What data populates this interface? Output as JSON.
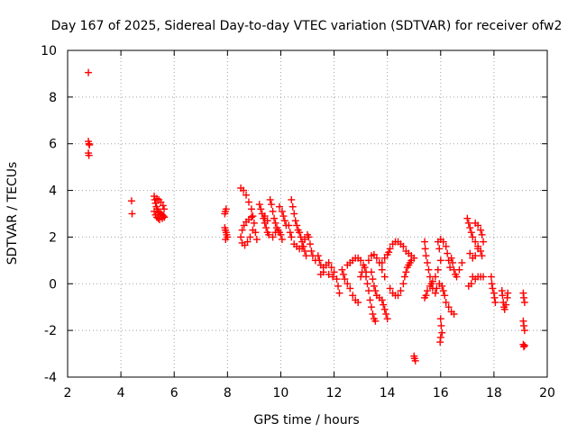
{
  "chart_data": {
    "type": "scatter",
    "title": "Day 167 of 2025, Sidereal Day-to-day VTEC variation (SDTVAR) for receiver ofw2",
    "xlabel": "GPS time / hours",
    "ylabel": "SDTVAR / TECUs",
    "xlim": [
      2,
      20
    ],
    "ylim": [
      -4,
      10
    ],
    "xticks": [
      2,
      4,
      6,
      8,
      10,
      12,
      14,
      16,
      18,
      20
    ],
    "yticks": [
      -4,
      -2,
      0,
      2,
      4,
      6,
      8,
      10
    ],
    "grid": true,
    "marker": "+",
    "series": [
      {
        "name": "SDTVAR",
        "color": "#ff0000",
        "points": [
          [
            2.78,
            9.05
          ],
          [
            2.78,
            6.1
          ],
          [
            2.8,
            6.0
          ],
          [
            2.82,
            5.95
          ],
          [
            2.78,
            5.6
          ],
          [
            2.8,
            5.5
          ],
          [
            4.4,
            3.55
          ],
          [
            4.42,
            3.0
          ],
          [
            5.25,
            3.75
          ],
          [
            5.27,
            3.6
          ],
          [
            5.3,
            3.45
          ],
          [
            5.33,
            3.3
          ],
          [
            5.36,
            3.2
          ],
          [
            5.4,
            3.1
          ],
          [
            5.45,
            3.05
          ],
          [
            5.5,
            3.0
          ],
          [
            5.55,
            2.95
          ],
          [
            5.6,
            2.9
          ],
          [
            5.63,
            2.85
          ],
          [
            5.25,
            3.1
          ],
          [
            5.3,
            2.95
          ],
          [
            5.35,
            2.85
          ],
          [
            5.4,
            2.8
          ],
          [
            5.45,
            2.75
          ],
          [
            5.55,
            2.8
          ],
          [
            5.62,
            3.2
          ],
          [
            5.58,
            3.35
          ],
          [
            5.5,
            3.5
          ],
          [
            5.42,
            3.6
          ],
          [
            5.35,
            3.65
          ],
          [
            7.9,
            3.0
          ],
          [
            7.92,
            3.1
          ],
          [
            7.95,
            3.2
          ],
          [
            7.9,
            2.4
          ],
          [
            7.92,
            2.3
          ],
          [
            7.95,
            2.2
          ],
          [
            7.97,
            2.1
          ],
          [
            8.0,
            2.0
          ],
          [
            7.93,
            1.9
          ],
          [
            8.5,
            4.1
          ],
          [
            8.6,
            4.0
          ],
          [
            8.7,
            3.8
          ],
          [
            8.8,
            3.5
          ],
          [
            8.9,
            3.2
          ],
          [
            8.95,
            2.9
          ],
          [
            9.0,
            2.6
          ],
          [
            8.95,
            2.3
          ],
          [
            8.85,
            2.0
          ],
          [
            8.75,
            1.8
          ],
          [
            8.65,
            1.65
          ],
          [
            8.55,
            1.75
          ],
          [
            8.5,
            2.0
          ],
          [
            8.55,
            2.3
          ],
          [
            8.62,
            2.5
          ],
          [
            8.7,
            2.65
          ],
          [
            8.8,
            2.75
          ],
          [
            8.9,
            2.85
          ],
          [
            9.05,
            2.2
          ],
          [
            9.1,
            1.9
          ],
          [
            9.2,
            3.4
          ],
          [
            9.25,
            3.2
          ],
          [
            9.3,
            3.0
          ],
          [
            9.35,
            2.8
          ],
          [
            9.4,
            2.6
          ],
          [
            9.45,
            2.4
          ],
          [
            9.5,
            2.2
          ],
          [
            9.55,
            2.1
          ],
          [
            9.6,
            3.6
          ],
          [
            9.65,
            3.4
          ],
          [
            9.7,
            3.1
          ],
          [
            9.75,
            2.8
          ],
          [
            9.8,
            2.6
          ],
          [
            9.85,
            2.4
          ],
          [
            9.9,
            2.3
          ],
          [
            9.95,
            2.2
          ],
          [
            10.0,
            2.1
          ],
          [
            10.05,
            1.9
          ],
          [
            9.7,
            2.0
          ],
          [
            9.8,
            2.2
          ],
          [
            9.95,
            3.3
          ],
          [
            10.05,
            3.1
          ],
          [
            10.1,
            2.9
          ],
          [
            10.15,
            2.7
          ],
          [
            10.2,
            2.5
          ],
          [
            9.5,
            2.7
          ],
          [
            9.4,
            2.9
          ],
          [
            10.4,
            3.6
          ],
          [
            10.45,
            3.3
          ],
          [
            10.5,
            3.0
          ],
          [
            10.55,
            2.7
          ],
          [
            10.6,
            2.5
          ],
          [
            10.65,
            2.3
          ],
          [
            10.7,
            2.2
          ],
          [
            10.75,
            2.0
          ],
          [
            10.8,
            1.8
          ],
          [
            10.85,
            1.6
          ],
          [
            10.9,
            1.4
          ],
          [
            10.95,
            1.2
          ],
          [
            10.3,
            2.5
          ],
          [
            10.35,
            2.2
          ],
          [
            10.4,
            2.0
          ],
          [
            10.5,
            1.7
          ],
          [
            10.6,
            1.6
          ],
          [
            10.7,
            1.5
          ],
          [
            10.8,
            1.6
          ],
          [
            10.9,
            1.9
          ],
          [
            11.0,
            2.1
          ],
          [
            11.05,
            2.0
          ],
          [
            11.1,
            1.7
          ],
          [
            11.15,
            1.4
          ],
          [
            11.2,
            1.2
          ],
          [
            11.3,
            1.0
          ],
          [
            11.4,
            1.2
          ],
          [
            11.45,
            1.0
          ],
          [
            11.5,
            0.8
          ],
          [
            11.6,
            0.7
          ],
          [
            11.7,
            0.8
          ],
          [
            11.8,
            0.9
          ],
          [
            11.9,
            0.7
          ],
          [
            12.0,
            0.5
          ],
          [
            11.5,
            0.4
          ],
          [
            11.6,
            0.5
          ],
          [
            11.8,
            0.4
          ],
          [
            11.95,
            0.3
          ],
          [
            12.1,
            0.2
          ],
          [
            12.15,
            -0.1
          ],
          [
            12.2,
            -0.4
          ],
          [
            12.3,
            0.6
          ],
          [
            12.35,
            0.4
          ],
          [
            12.4,
            0.2
          ],
          [
            12.5,
            0.0
          ],
          [
            12.6,
            -0.2
          ],
          [
            12.7,
            -0.5
          ],
          [
            12.8,
            -0.7
          ],
          [
            12.9,
            -0.8
          ],
          [
            12.5,
            0.8
          ],
          [
            12.6,
            0.9
          ],
          [
            12.7,
            1.0
          ],
          [
            12.8,
            1.1
          ],
          [
            12.9,
            1.1
          ],
          [
            13.0,
            1.0
          ],
          [
            13.1,
            0.8
          ],
          [
            13.2,
            0.5
          ],
          [
            13.0,
            0.3
          ],
          [
            13.05,
            0.5
          ],
          [
            13.15,
            0.7
          ],
          [
            13.2,
            0.3
          ],
          [
            13.25,
            0.0
          ],
          [
            13.3,
            -0.3
          ],
          [
            13.35,
            -0.7
          ],
          [
            13.4,
            -1.0
          ],
          [
            13.45,
            -1.3
          ],
          [
            13.5,
            -1.5
          ],
          [
            13.55,
            -1.6
          ],
          [
            13.3,
            1.0
          ],
          [
            13.4,
            1.2
          ],
          [
            13.5,
            1.25
          ],
          [
            13.6,
            1.1
          ],
          [
            13.7,
            0.9
          ],
          [
            13.8,
            0.6
          ],
          [
            13.9,
            0.3
          ],
          [
            13.4,
            0.5
          ],
          [
            13.45,
            0.2
          ],
          [
            13.5,
            -0.1
          ],
          [
            13.55,
            -0.3
          ],
          [
            13.6,
            -0.5
          ],
          [
            13.7,
            -0.6
          ],
          [
            13.8,
            -0.7
          ],
          [
            13.85,
            -0.9
          ],
          [
            13.9,
            -1.1
          ],
          [
            13.95,
            -1.3
          ],
          [
            14.0,
            -1.5
          ],
          [
            13.8,
            0.9
          ],
          [
            13.9,
            1.1
          ],
          [
            14.0,
            1.25
          ],
          [
            14.05,
            1.35
          ],
          [
            14.1,
            1.5
          ],
          [
            14.2,
            1.7
          ],
          [
            14.3,
            1.8
          ],
          [
            14.4,
            1.8
          ],
          [
            14.5,
            1.7
          ],
          [
            14.6,
            1.6
          ],
          [
            14.7,
            1.4
          ],
          [
            14.8,
            1.3
          ],
          [
            14.9,
            1.2
          ],
          [
            15.0,
            1.1
          ],
          [
            14.1,
            -0.2
          ],
          [
            14.2,
            -0.4
          ],
          [
            14.3,
            -0.5
          ],
          [
            14.4,
            -0.5
          ],
          [
            14.5,
            -0.3
          ],
          [
            14.6,
            0.0
          ],
          [
            14.65,
            0.3
          ],
          [
            14.7,
            0.5
          ],
          [
            14.75,
            0.7
          ],
          [
            14.8,
            0.8
          ],
          [
            14.85,
            0.9
          ],
          [
            14.9,
            1.0
          ],
          [
            15.0,
            -3.1
          ],
          [
            15.02,
            -3.2
          ],
          [
            15.05,
            -3.3
          ],
          [
            15.4,
            1.8
          ],
          [
            15.42,
            1.5
          ],
          [
            15.45,
            1.2
          ],
          [
            15.5,
            0.9
          ],
          [
            15.55,
            0.6
          ],
          [
            15.6,
            0.3
          ],
          [
            15.65,
            0.0
          ],
          [
            15.7,
            -0.2
          ],
          [
            15.4,
            -0.6
          ],
          [
            15.45,
            -0.5
          ],
          [
            15.5,
            -0.3
          ],
          [
            15.6,
            -0.1
          ],
          [
            15.7,
            0.1
          ],
          [
            15.8,
            0.3
          ],
          [
            15.9,
            0.6
          ],
          [
            16.0,
            1.0
          ],
          [
            15.95,
            1.5
          ],
          [
            15.9,
            1.8
          ],
          [
            16.0,
            1.9
          ],
          [
            16.1,
            1.8
          ],
          [
            16.2,
            1.6
          ],
          [
            16.25,
            1.3
          ],
          [
            16.3,
            1.0
          ],
          [
            16.35,
            0.7
          ],
          [
            15.8,
            -0.4
          ],
          [
            15.85,
            -0.2
          ],
          [
            15.95,
            0.0
          ],
          [
            16.05,
            -0.1
          ],
          [
            16.1,
            -0.3
          ],
          [
            16.15,
            -0.5
          ],
          [
            16.2,
            -0.8
          ],
          [
            16.3,
            -1.0
          ],
          [
            16.4,
            -1.2
          ],
          [
            16.5,
            -1.3
          ],
          [
            16.0,
            -1.5
          ],
          [
            16.02,
            -1.8
          ],
          [
            16.05,
            -2.1
          ],
          [
            16.0,
            -2.3
          ],
          [
            15.98,
            -2.5
          ],
          [
            16.4,
            1.1
          ],
          [
            16.45,
            0.9
          ],
          [
            16.5,
            0.6
          ],
          [
            16.55,
            0.4
          ],
          [
            16.6,
            0.3
          ],
          [
            16.7,
            0.6
          ],
          [
            16.8,
            0.9
          ],
          [
            17.0,
            2.8
          ],
          [
            17.05,
            2.6
          ],
          [
            17.1,
            2.4
          ],
          [
            17.15,
            2.2
          ],
          [
            17.2,
            2.0
          ],
          [
            17.3,
            1.8
          ],
          [
            17.4,
            1.6
          ],
          [
            17.5,
            1.4
          ],
          [
            17.55,
            1.2
          ],
          [
            17.3,
            2.6
          ],
          [
            17.4,
            2.5
          ],
          [
            17.5,
            2.3
          ],
          [
            17.55,
            2.1
          ],
          [
            17.6,
            1.8
          ],
          [
            17.1,
            1.3
          ],
          [
            17.2,
            1.1
          ],
          [
            17.3,
            1.2
          ],
          [
            17.4,
            1.5
          ],
          [
            17.2,
            0.3
          ],
          [
            17.3,
            0.2
          ],
          [
            17.4,
            0.3
          ],
          [
            17.5,
            0.3
          ],
          [
            17.6,
            0.3
          ],
          [
            17.05,
            -0.1
          ],
          [
            17.15,
            0.0
          ],
          [
            17.9,
            0.3
          ],
          [
            17.92,
            0.0
          ],
          [
            17.95,
            -0.2
          ],
          [
            18.0,
            -0.4
          ],
          [
            18.02,
            -0.6
          ],
          [
            18.05,
            -0.8
          ],
          [
            18.3,
            -0.3
          ],
          [
            18.32,
            -0.5
          ],
          [
            18.35,
            -0.8
          ],
          [
            18.38,
            -1.0
          ],
          [
            18.4,
            -1.1
          ],
          [
            18.45,
            -0.9
          ],
          [
            18.5,
            -0.6
          ],
          [
            18.52,
            -0.4
          ],
          [
            19.1,
            -0.4
          ],
          [
            19.12,
            -0.6
          ],
          [
            19.15,
            -0.8
          ],
          [
            19.1,
            -1.6
          ],
          [
            19.12,
            -1.8
          ],
          [
            19.15,
            -2.0
          ],
          [
            19.1,
            -2.6
          ],
          [
            19.12,
            -2.7
          ],
          [
            19.15,
            -2.65
          ]
        ]
      }
    ]
  }
}
